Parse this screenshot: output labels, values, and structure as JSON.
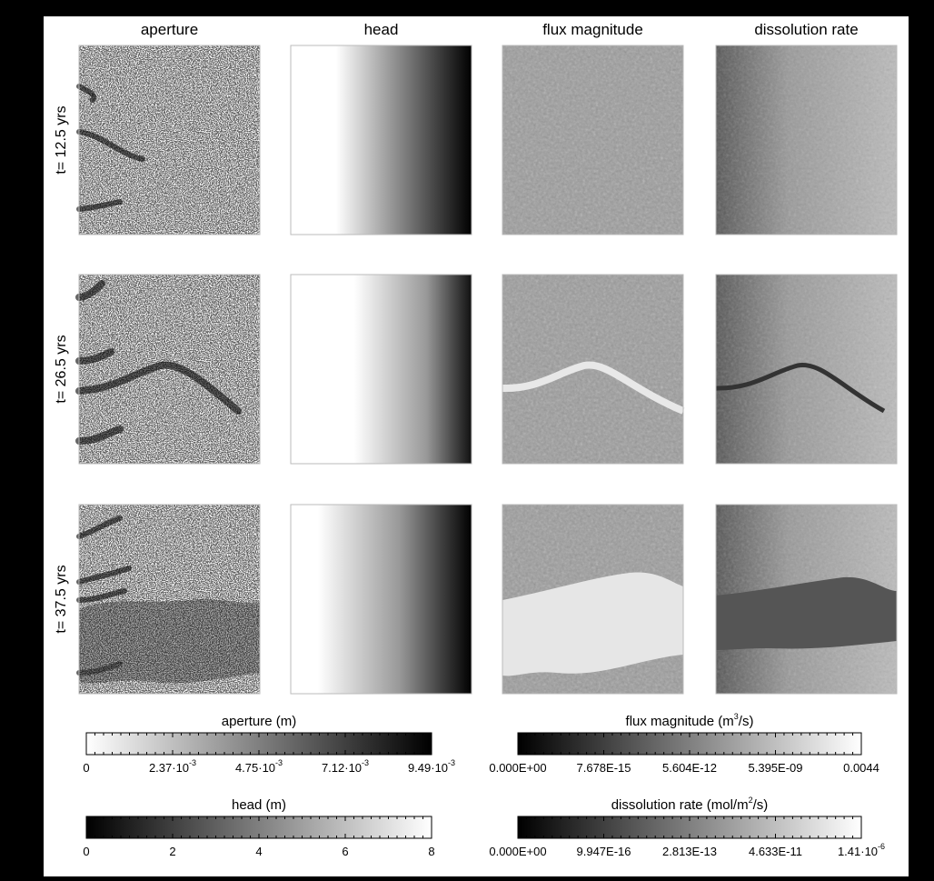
{
  "columns": [
    "aperture",
    "head",
    "flux magnitude",
    "dissolution rate"
  ],
  "rows": [
    "t= 12.5 yrs",
    "t= 26.5 yrs",
    "t= 37.5 yrs"
  ],
  "colorbars": [
    {
      "title": [
        "aperture (m)"
      ],
      "ticks": [
        [
          "0"
        ],
        [
          "2.37·10",
          "-3"
        ],
        [
          "4.75·10",
          "-3"
        ],
        [
          "7.12·10",
          "-3"
        ],
        [
          "9.49·10",
          "-3"
        ]
      ]
    },
    {
      "title": [
        "head (m)"
      ],
      "ticks": [
        [
          "0"
        ],
        [
          "2"
        ],
        [
          "4"
        ],
        [
          "6"
        ],
        [
          "8"
        ]
      ]
    },
    {
      "title": [
        "flux magnitude (m",
        "3",
        "/s)"
      ],
      "ticks": [
        [
          "0.000E+00"
        ],
        [
          "7.678E-15"
        ],
        [
          "5.604E-12"
        ],
        [
          "5.395E-09"
        ],
        [
          "0.0044"
        ]
      ]
    },
    {
      "title": [
        "dissolution rate (mol/m",
        "2",
        "/s)"
      ],
      "ticks": [
        [
          "0.000E+00"
        ],
        [
          "9.947E-16"
        ],
        [
          "2.813E-13"
        ],
        [
          "4.633E-11"
        ],
        [
          "1.41·10",
          "-6"
        ]
      ]
    }
  ]
}
